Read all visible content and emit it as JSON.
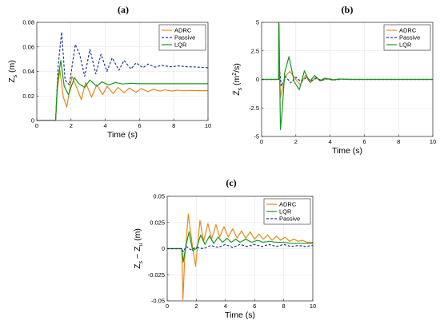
{
  "colors": {
    "adrc": "#E8891C",
    "passive": "#1F3A93",
    "lqr": "#17991D"
  },
  "chart_data": [
    {
      "panel": "(a)",
      "type": "line",
      "xlabel": "Time (s)",
      "ylabel": "Z_s (m)",
      "ylabel_main": "Z",
      "ylabel_sub": "s",
      "ylabel_unit": " (m)",
      "xlim": [
        0,
        10
      ],
      "ylim": [
        0,
        0.08
      ],
      "xticks": [
        0,
        2,
        4,
        6,
        8,
        10
      ],
      "xtick_labels": [
        "0",
        "2",
        "4",
        "6",
        "8",
        "10"
      ],
      "yticks": [
        0,
        0.02,
        0.04,
        0.06,
        0.08
      ],
      "ytick_labels": [
        "0",
        "0.02",
        "0.04",
        "0.06",
        "0.08"
      ],
      "grid": true,
      "legend_position": "top-right",
      "legend": [
        "ADRC",
        "Passive",
        "LQR"
      ],
      "series": [
        {
          "name": "ADRC",
          "color_key": "adrc",
          "dash": false,
          "x": [
            0,
            1.0,
            1.1,
            1.2,
            1.35,
            1.55,
            1.75,
            2.05,
            2.3,
            2.6,
            2.85,
            3.2,
            3.5,
            3.85,
            4.1,
            4.45,
            4.75,
            5.1,
            5.4,
            5.8,
            6.1,
            6.5,
            6.8,
            7.2,
            7.5,
            7.9,
            8.2,
            8.6,
            9.0,
            9.5,
            10.0
          ],
          "y": [
            0,
            0,
            0.0,
            0.025,
            0.041,
            0.019,
            0.011,
            0.036,
            0.028,
            0.017,
            0.031,
            0.019,
            0.029,
            0.021,
            0.028,
            0.022,
            0.027,
            0.0225,
            0.0265,
            0.023,
            0.026,
            0.0235,
            0.0255,
            0.024,
            0.025,
            0.024,
            0.0248,
            0.0242,
            0.0245,
            0.0243,
            0.0243
          ]
        },
        {
          "name": "Passive",
          "color_key": "passive",
          "dash": true,
          "x": [
            0,
            1.0,
            1.1,
            1.25,
            1.45,
            1.65,
            1.9,
            2.25,
            2.5,
            2.8,
            3.1,
            3.45,
            3.75,
            4.1,
            4.4,
            4.8,
            5.1,
            5.5,
            5.8,
            6.2,
            6.5,
            6.9,
            7.3,
            7.8,
            8.3,
            8.8,
            9.3,
            10.0
          ],
          "y": [
            0,
            0,
            0.0,
            0.045,
            0.072,
            0.033,
            0.029,
            0.062,
            0.054,
            0.036,
            0.058,
            0.038,
            0.054,
            0.04,
            0.051,
            0.041,
            0.049,
            0.042,
            0.047,
            0.043,
            0.046,
            0.0435,
            0.045,
            0.0438,
            0.0445,
            0.0438,
            0.0436,
            0.043
          ]
        },
        {
          "name": "LQR",
          "color_key": "lqr",
          "dash": false,
          "x": [
            0,
            1.0,
            1.1,
            1.2,
            1.4,
            1.6,
            1.85,
            2.2,
            2.45,
            2.8,
            3.1,
            3.5,
            3.8,
            4.2,
            4.6,
            5.0,
            5.5,
            6.0,
            7.0,
            8.0,
            10.0
          ],
          "y": [
            0,
            0,
            0.0,
            0.03,
            0.049,
            0.028,
            0.021,
            0.035,
            0.03,
            0.027,
            0.033,
            0.028,
            0.0315,
            0.029,
            0.031,
            0.0298,
            0.0303,
            0.03,
            0.03,
            0.03,
            0.03
          ]
        }
      ]
    },
    {
      "panel": "(b)",
      "type": "line",
      "xlabel": "Time (s)",
      "ylabel": "Z̈_s (m²/s)",
      "ylabel_main": "Z̈",
      "ylabel_sub": "s",
      "ylabel_unit": " (m",
      "ylabel_sup": "2",
      "ylabel_unit_end": "/s)",
      "xlim": [
        0,
        10
      ],
      "ylim": [
        -5,
        5
      ],
      "xticks": [
        0,
        2,
        4,
        6,
        8,
        10
      ],
      "xtick_labels": [
        "0",
        "2",
        "4",
        "6",
        "8",
        "10"
      ],
      "yticks": [
        -5,
        -2.5,
        0,
        2.5,
        5
      ],
      "ytick_labels": [
        "-5",
        "-2.5",
        "0",
        "2.5",
        "5"
      ],
      "grid": true,
      "legend_position": "top-right",
      "legend": [
        "ADRC",
        "Passive",
        "LQR"
      ],
      "series": [
        {
          "name": "ADRC",
          "color_key": "adrc",
          "dash": false,
          "x": [
            0,
            1.0,
            1.05,
            1.1,
            1.2,
            1.4,
            1.65,
            1.95,
            2.25,
            2.55,
            2.85,
            3.15,
            3.45,
            3.8,
            4.2,
            4.6,
            5.0,
            6.0,
            10.0
          ],
          "y": [
            0,
            0,
            1.0,
            -1.6,
            -0.9,
            0.3,
            0.7,
            0.1,
            -0.5,
            0.35,
            -0.3,
            0.2,
            -0.15,
            0.1,
            -0.05,
            0.04,
            0,
            0,
            0
          ]
        },
        {
          "name": "Passive",
          "color_key": "passive",
          "dash": true,
          "x": [
            0,
            1.0,
            1.05,
            1.15,
            1.4,
            1.7,
            2.0,
            2.3,
            2.6,
            2.9,
            3.2,
            3.5,
            3.9,
            4.3,
            4.8,
            5.3,
            6.0,
            10.0
          ],
          "y": [
            0,
            0,
            0.8,
            -0.6,
            0.25,
            -0.3,
            0.2,
            -0.2,
            0.15,
            -0.12,
            0.1,
            -0.08,
            0.06,
            -0.04,
            0.03,
            0,
            0,
            0
          ]
        },
        {
          "name": "LQR",
          "color_key": "lqr",
          "dash": false,
          "x": [
            0,
            0.99,
            1.0,
            1.02,
            1.05,
            1.1,
            1.2,
            1.35,
            1.6,
            1.9,
            2.2,
            2.5,
            2.8,
            3.1,
            3.4,
            3.7,
            4.1,
            4.5,
            5.0,
            6.0,
            10.0
          ],
          "y": [
            0,
            0,
            5,
            4.8,
            1.2,
            -4.4,
            -2.8,
            0.6,
            2.0,
            -0.2,
            -0.9,
            0.75,
            -0.2,
            0.35,
            -0.12,
            0.12,
            -0.05,
            0.04,
            0,
            0,
            0
          ]
        }
      ]
    },
    {
      "panel": "(c)",
      "type": "line",
      "xlabel": "Time (s)",
      "ylabel": "Z_s − Z_u (m)",
      "ylabel_main": "Z",
      "ylabel_sub": "s",
      "ylabel_mid": " − Z",
      "ylabel_sub2": "u",
      "ylabel_unit": " (m)",
      "xlim": [
        0,
        10
      ],
      "ylim": [
        -0.05,
        0.05
      ],
      "xticks": [
        0,
        2,
        4,
        6,
        8,
        10
      ],
      "xtick_labels": [
        "0",
        "2",
        "4",
        "6",
        "8",
        "10"
      ],
      "yticks": [
        -0.05,
        -0.025,
        0,
        0.025,
        0.05
      ],
      "ytick_labels": [
        "-0.05",
        "-0.025",
        "0",
        "0.025",
        "0.05"
      ],
      "grid": true,
      "legend_position": "top-right",
      "legend": [
        "ADRC",
        "LQR",
        "Passive"
      ],
      "series": [
        {
          "name": "ADRC",
          "color_key": "adrc",
          "dash": false,
          "x": [
            0,
            1.0,
            1.08,
            1.2,
            1.45,
            1.7,
            1.95,
            2.25,
            2.5,
            2.8,
            3.05,
            3.35,
            3.6,
            3.9,
            4.2,
            4.5,
            4.8,
            5.1,
            5.4,
            5.7,
            6.0,
            6.3,
            6.6,
            6.9,
            7.2,
            7.5,
            7.8,
            8.1,
            8.4,
            8.7,
            9.0,
            9.3,
            9.6,
            10.0
          ],
          "y": [
            0,
            0,
            -0.049,
            -0.01,
            0.033,
            0.006,
            -0.017,
            0.027,
            0.007,
            0.024,
            0.009,
            0.023,
            0.011,
            0.021,
            0.011,
            0.019,
            0.01,
            0.017,
            0.01,
            0.016,
            0.009,
            0.014,
            0.009,
            0.013,
            0.008,
            0.012,
            0.008,
            0.011,
            0.007,
            0.009,
            0.007,
            0.008,
            0.006,
            0.006
          ]
        },
        {
          "name": "LQR",
          "color_key": "lqr",
          "dash": false,
          "x": [
            0,
            1.0,
            1.1,
            1.25,
            1.5,
            1.75,
            2.0,
            2.3,
            2.6,
            2.9,
            3.2,
            3.5,
            3.8,
            4.1,
            4.4,
            4.7,
            5.0,
            5.4,
            5.8,
            6.2,
            6.6,
            7.0,
            7.5,
            8.0,
            8.5,
            9.0,
            9.5,
            10.0
          ],
          "y": [
            0,
            0,
            -0.013,
            0.0,
            0.016,
            -0.002,
            0.0,
            0.013,
            0.004,
            0.012,
            0.005,
            0.011,
            0.006,
            0.01,
            0.006,
            0.009,
            0.006,
            0.009,
            0.006,
            0.008,
            0.006,
            0.007,
            0.006,
            0.006,
            0.005,
            0.005,
            0.005,
            0.005
          ]
        },
        {
          "name": "Passive",
          "color_key": "passive",
          "dash": true,
          "x": [
            0,
            1.0,
            1.1,
            1.3,
            1.6,
            2.0,
            2.5,
            3.0,
            3.5,
            4.0,
            4.5,
            5.0,
            5.5,
            6.0,
            6.5,
            7.0,
            7.5,
            8.0,
            8.5,
            9.0,
            9.5,
            10.0
          ],
          "y": [
            0,
            0,
            -0.003,
            0.002,
            -0.001,
            0.001,
            0.0,
            0.003,
            0.001,
            0.004,
            0.001,
            0.004,
            0.002,
            0.004,
            0.002,
            0.004,
            0.002,
            0.004,
            0.002,
            0.003,
            0.002,
            0.003
          ]
        }
      ]
    }
  ]
}
